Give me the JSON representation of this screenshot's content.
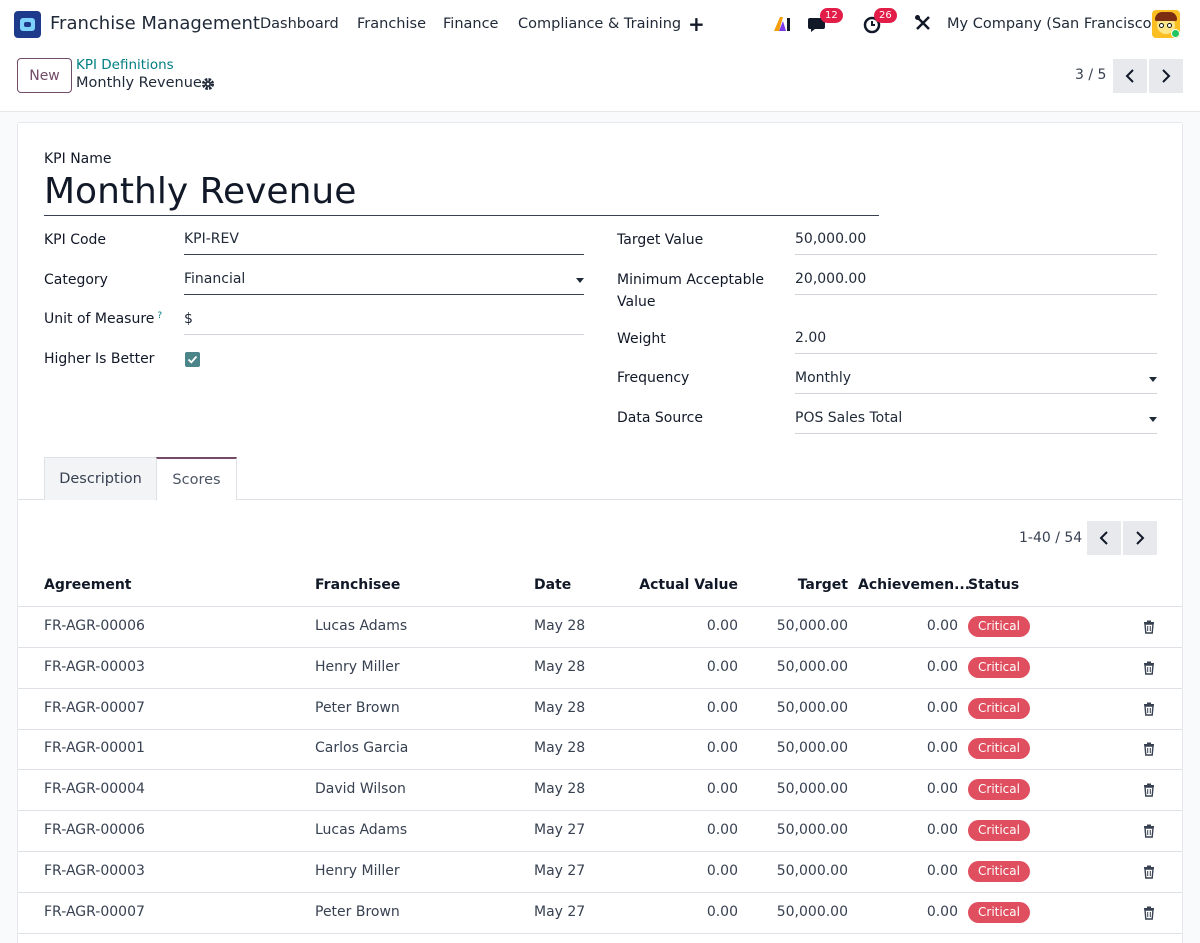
{
  "navbar": {
    "brand": "Franchise Management",
    "menu": [
      "Dashboard",
      "Franchise",
      "Finance",
      "Compliance & Training"
    ],
    "chat_count": "12",
    "activity_count": "26",
    "company": "My Company (San Francisco)"
  },
  "control": {
    "new_label": "New",
    "breadcrumb_parent": "KPI Definitions",
    "breadcrumb_current": "Monthly Revenue",
    "pager": "3 / 5"
  },
  "form": {
    "kpi_name_label": "KPI Name",
    "kpi_name": "Monthly Revenue",
    "left": {
      "kpi_code_label": "KPI Code",
      "kpi_code": "KPI-REV",
      "category_label": "Category",
      "category": "Financial",
      "uom_label": "Unit of Measure",
      "uom_help": "?",
      "uom": "$",
      "higher_label": "Higher Is Better",
      "higher_checked": true
    },
    "right": {
      "target_label": "Target Value",
      "target": "50,000.00",
      "min_label_1": "Minimum Acceptable",
      "min_label_2": "Value",
      "min": "20,000.00",
      "weight_label": "Weight",
      "weight": "2.00",
      "frequency_label": "Frequency",
      "frequency": "Monthly",
      "source_label": "Data Source",
      "source": "POS Sales Total"
    }
  },
  "tabs": {
    "description": "Description",
    "scores": "Scores"
  },
  "scores": {
    "pager": "1-40 / 54",
    "columns": [
      "Agreement",
      "Franchisee",
      "Date",
      "Actual Value",
      "Target",
      "Achievemen...",
      "Status"
    ],
    "rows": [
      {
        "agreement": "FR-AGR-00006",
        "franchisee": "Lucas Adams",
        "date": "May 28",
        "actual": "0.00",
        "target": "50,000.00",
        "achievement": "0.00",
        "status": "Critical"
      },
      {
        "agreement": "FR-AGR-00003",
        "franchisee": "Henry Miller",
        "date": "May 28",
        "actual": "0.00",
        "target": "50,000.00",
        "achievement": "0.00",
        "status": "Critical"
      },
      {
        "agreement": "FR-AGR-00007",
        "franchisee": "Peter Brown",
        "date": "May 28",
        "actual": "0.00",
        "target": "50,000.00",
        "achievement": "0.00",
        "status": "Critical"
      },
      {
        "agreement": "FR-AGR-00001",
        "franchisee": "Carlos Garcia",
        "date": "May 28",
        "actual": "0.00",
        "target": "50,000.00",
        "achievement": "0.00",
        "status": "Critical"
      },
      {
        "agreement": "FR-AGR-00004",
        "franchisee": "David Wilson",
        "date": "May 28",
        "actual": "0.00",
        "target": "50,000.00",
        "achievement": "0.00",
        "status": "Critical"
      },
      {
        "agreement": "FR-AGR-00006",
        "franchisee": "Lucas Adams",
        "date": "May 27",
        "actual": "0.00",
        "target": "50,000.00",
        "achievement": "0.00",
        "status": "Critical"
      },
      {
        "agreement": "FR-AGR-00003",
        "franchisee": "Henry Miller",
        "date": "May 27",
        "actual": "0.00",
        "target": "50,000.00",
        "achievement": "0.00",
        "status": "Critical"
      },
      {
        "agreement": "FR-AGR-00007",
        "franchisee": "Peter Brown",
        "date": "May 27",
        "actual": "0.00",
        "target": "50,000.00",
        "achievement": "0.00",
        "status": "Critical"
      }
    ]
  },
  "colors": {
    "primary": "#714b67",
    "link": "#017e84",
    "critical": "#e04f5f",
    "badge": "#e11d48"
  }
}
